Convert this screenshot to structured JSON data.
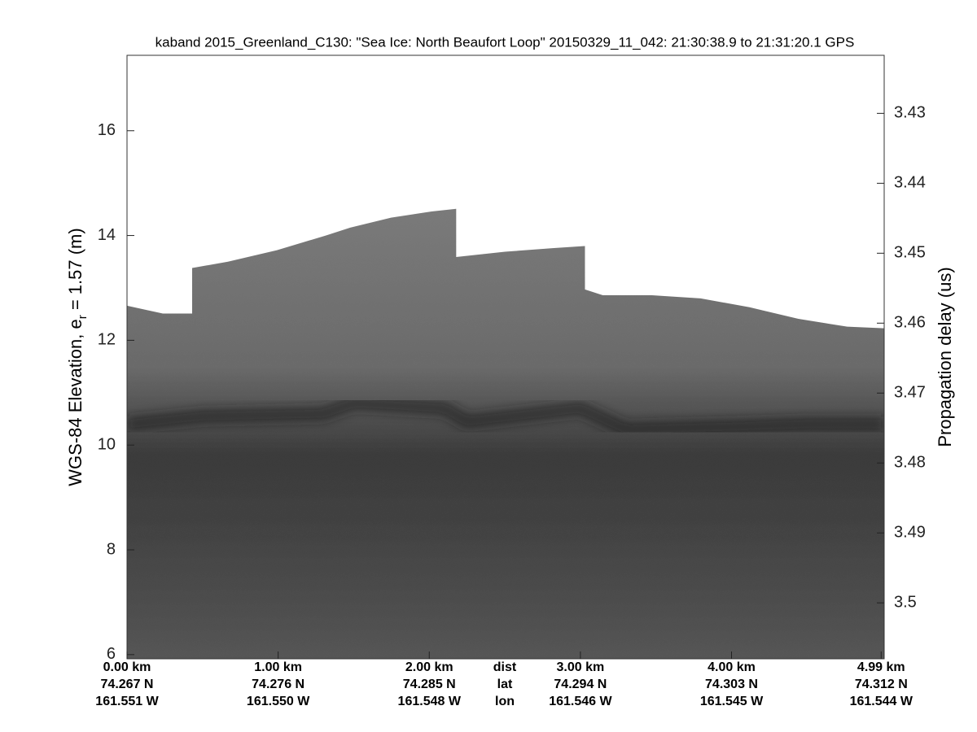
{
  "chart_data": {
    "type": "echogram",
    "title": "kaband 2015_Greenland_C130: \"Sea Ice: North Beaufort Loop\"  20150329_11_042: 21:30:38.9 to 21:31:20.1 GPS",
    "ylabel": {
      "text": "WGS-84 Elevation, e",
      "subscript": "r",
      "suffix": " = 1.57 (m)"
    },
    "y2label": "Propagation delay (us)",
    "xlim": [
      0,
      5.01
    ],
    "xticks": [
      {
        "value": 0,
        "label": "0.00 km"
      },
      {
        "value": 1,
        "label": "1.00 km"
      },
      {
        "value": 2,
        "label": "2.00 km"
      },
      {
        "value": 3,
        "label": "3.00 km"
      },
      {
        "value": 4,
        "label": "4.00 km"
      },
      {
        "value": 4.99,
        "label": "4.99 km"
      }
    ],
    "lat_labels": [
      "74.267 N",
      "74.276 N",
      "74.285 N",
      "74.294 N",
      "74.303 N",
      "74.312 N"
    ],
    "lon_labels": [
      "161.551 W",
      "161.550 W",
      "161.548 W",
      "161.546 W",
      "161.545 W",
      "161.544 W"
    ],
    "row_labels": [
      "dist",
      "lat",
      "lon"
    ],
    "ylim": [
      5.92,
      17.44
    ],
    "yticks": [
      6,
      8,
      10,
      12,
      14,
      16
    ],
    "y2lim": [
      3.508,
      3.4217
    ],
    "y2ticks": [
      3.43,
      3.44,
      3.45,
      3.46,
      3.47,
      3.48,
      3.49,
      3.5
    ],
    "series": [
      {
        "color": "#737373",
        "x": [
          0,
          0.237,
          0.431,
          0.431,
          0.668,
          0.992,
          1.315,
          1.477,
          1.747,
          2.016,
          2.178,
          2.178,
          2.501,
          2.825,
          3.03,
          3.03,
          3.148,
          3.472,
          3.795,
          4.119,
          4.442,
          4.765,
          5.01
        ],
        "values": [
          12.66,
          12.51,
          12.51,
          13.38,
          13.5,
          13.72,
          14.0,
          14.15,
          14.34,
          14.46,
          14.51,
          13.59,
          13.69,
          13.76,
          13.8,
          12.97,
          12.86,
          12.86,
          12.8,
          12.63,
          12.41,
          12.26,
          12.23
        ]
      },
      {
        "color": "#1e1e1e",
        "x": [
          0,
          0.5,
          1.3,
          1.5,
          2.1,
          2.25,
          3.0,
          3.3,
          4.0,
          4.5,
          5.01
        ],
        "values": [
          10.4,
          10.55,
          10.6,
          10.8,
          10.7,
          10.45,
          10.7,
          10.3,
          10.35,
          10.4,
          10.4
        ]
      }
    ]
  }
}
